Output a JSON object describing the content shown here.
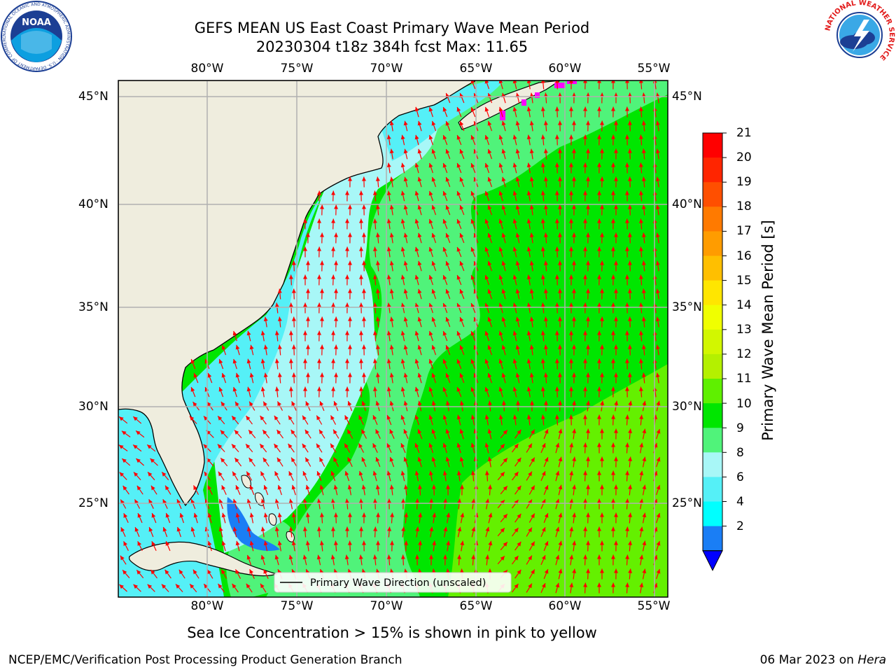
{
  "title": {
    "line1": "GEFS MEAN US East Coast Primary Wave Mean Period",
    "line2": "20230304 t18z 384h fcst   Max: 11.65"
  },
  "map": {
    "lon_labels": [
      "80°W",
      "75°W",
      "70°W",
      "65°W",
      "60°W",
      "55°W"
    ],
    "lat_labels": [
      "45°N",
      "40°N",
      "35°N",
      "30°N",
      "25°N"
    ],
    "ocean_colors": {
      "light_cyan": "#a8f7f7",
      "cyan": "#55f0f7",
      "light_green": "#50f37a",
      "green": "#00e600",
      "lime": "#64f000",
      "blue": "#1a7ef5",
      "land": "#efedde",
      "arrow": "#ff0000",
      "ice": "#ff00ff"
    },
    "legend_text": "Primary Wave Direction (unscaled)"
  },
  "colorbar": {
    "label": "Primary Wave Mean Period [s]",
    "ticks": [
      "21",
      "20",
      "19",
      "18",
      "17",
      "16",
      "15",
      "14",
      "13",
      "12",
      "11",
      "10",
      "9",
      "8",
      "6",
      "4",
      "2"
    ],
    "colors": [
      "#ff0000",
      "#ff2500",
      "#ff4f00",
      "#ff7a00",
      "#ff9c00",
      "#ffbf00",
      "#ffe600",
      "#f0ff00",
      "#d2f700",
      "#b4f000",
      "#5ff000",
      "#00e600",
      "#50f37a",
      "#a8f7f7",
      "#55f0f7",
      "#00ffff",
      "#1a7ef5",
      "#0000ff"
    ]
  },
  "notes": {
    "sea_ice": "Sea Ice Concentration > 15% is shown in pink to yellow"
  },
  "footer": {
    "left": "NCEP/EMC/Verification Post Processing Product Generation Branch",
    "date": "06 Mar 2023 on ",
    "machine": "Hera"
  },
  "logos": {
    "noaa_text": "NOAA",
    "noaa_ring": "NATIONAL OCEANIC AND ATMOSPHERIC ADMINISTRATION · U.S. DEPARTMENT OF COMMERCE",
    "nws_ring": "NATIONAL WEATHER SERVICE"
  }
}
